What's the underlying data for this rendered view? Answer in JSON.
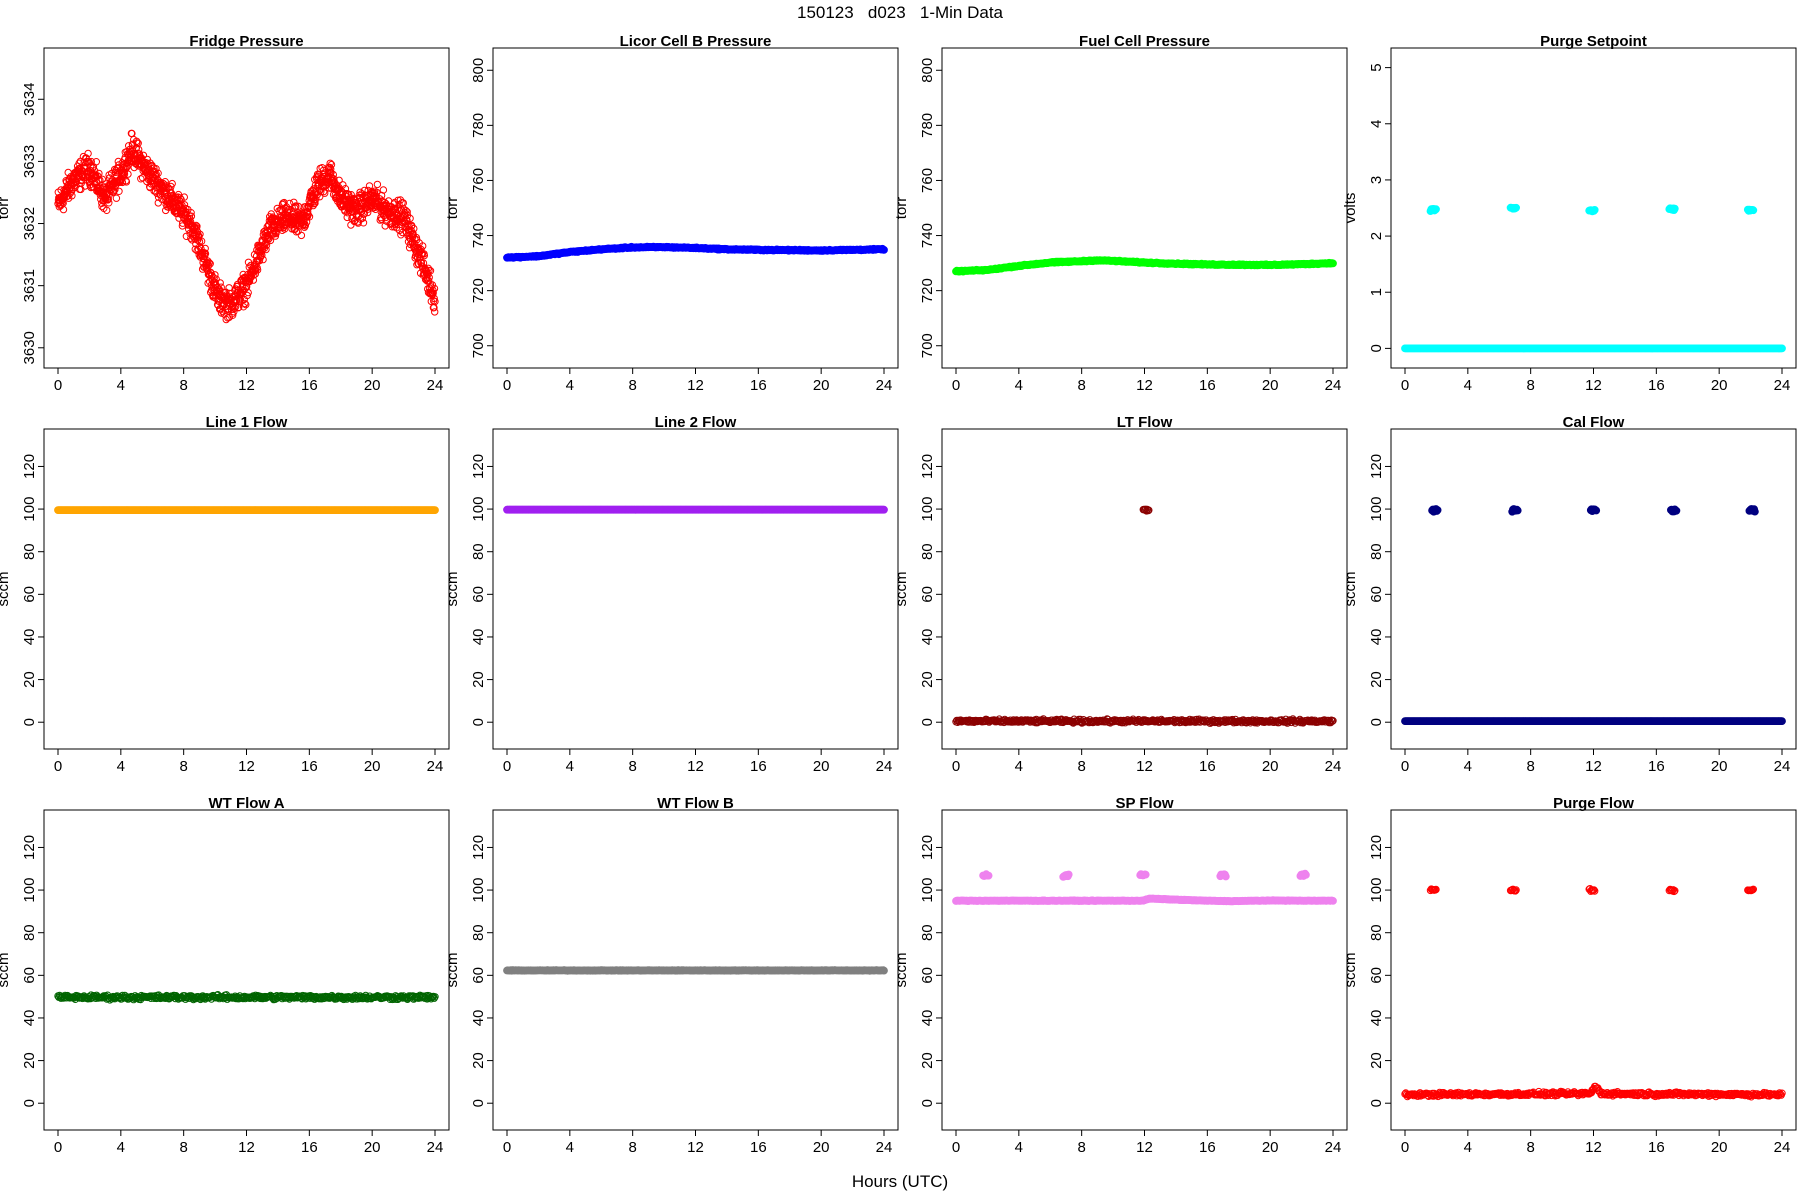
{
  "figure": {
    "suptitle": "150123   d023   1-Min Data",
    "xlabel": "Hours (UTC)"
  },
  "chart_data": [
    {
      "id": "fridge",
      "type": "scatter",
      "title": "Fridge Pressure",
      "ylabel": "torr",
      "color": "#ff0000",
      "marker": "open-circle",
      "xlim": [
        0,
        24
      ],
      "ylim": [
        3629.9,
        3634.6
      ],
      "xticks": [
        0,
        4,
        8,
        12,
        16,
        20,
        24
      ],
      "yticks": [
        3630,
        3631,
        3632,
        3633,
        3634
      ],
      "series": [
        {
          "x": [
            0,
            1,
            2,
            3,
            4,
            4.7,
            5.5,
            6.5,
            7.5,
            8.5,
            9.5,
            10.2,
            11,
            12,
            12.5,
            13.5,
            14.5,
            15.5,
            16.5,
            17.3,
            18,
            19,
            20,
            21,
            22,
            23,
            24
          ],
          "y": [
            3632.3,
            3632.7,
            3632.9,
            3632.4,
            3632.8,
            3633.2,
            3632.9,
            3632.6,
            3632.3,
            3632.0,
            3631.3,
            3630.8,
            3630.7,
            3631.0,
            3631.3,
            3631.9,
            3632.1,
            3632.0,
            3632.6,
            3632.8,
            3632.4,
            3632.2,
            3632.4,
            3632.2,
            3632.1,
            3631.5,
            3630.8
          ],
          "spread": 0.35
        }
      ]
    },
    {
      "id": "licor",
      "type": "scatter",
      "title": "Licor Cell B Pressure",
      "ylabel": "torr",
      "color": "#0000ff",
      "marker": "filled-circle",
      "xlim": [
        0,
        24
      ],
      "ylim": [
        697,
        803
      ],
      "xticks": [
        0,
        4,
        8,
        12,
        16,
        20,
        24
      ],
      "yticks": [
        700,
        720,
        740,
        760,
        780,
        800
      ],
      "series": [
        {
          "x": [
            0,
            2,
            4,
            6,
            8,
            10,
            12,
            14,
            16,
            18,
            20,
            22,
            24
          ],
          "y": [
            732,
            732.5,
            734,
            735,
            735.7,
            735.8,
            735.5,
            735,
            734.8,
            734.7,
            734.6,
            734.8,
            735
          ],
          "spread": 0.3
        }
      ]
    },
    {
      "id": "fuelcell",
      "type": "scatter",
      "title": "Fuel Cell Pressure",
      "ylabel": "torr",
      "color": "#00ff00",
      "marker": "filled-circle",
      "xlim": [
        0,
        24
      ],
      "ylim": [
        697,
        803
      ],
      "xticks": [
        0,
        4,
        8,
        12,
        16,
        20,
        24
      ],
      "yticks": [
        700,
        720,
        740,
        760,
        780,
        800
      ],
      "series": [
        {
          "x": [
            0,
            2,
            4,
            6,
            8,
            9,
            10,
            12,
            14,
            16,
            18,
            20,
            22,
            24
          ],
          "y": [
            727,
            727.5,
            729,
            730.2,
            730.7,
            731,
            730.8,
            730.2,
            729.8,
            729.5,
            729.4,
            729.3,
            729.6,
            730
          ],
          "spread": 0.3
        }
      ]
    },
    {
      "id": "purgesetpoint",
      "type": "scatter",
      "title": "Purge Setpoint",
      "ylabel": "volts",
      "color": "#00ffff",
      "marker": "filled-circle",
      "xlim": [
        0,
        24
      ],
      "ylim": [
        -0.1,
        5.1
      ],
      "xticks": [
        0,
        4,
        8,
        12,
        16,
        20,
        24
      ],
      "yticks": [
        0,
        1,
        2,
        3,
        4,
        5
      ],
      "series": [
        {
          "x": [
            0,
            24
          ],
          "y": [
            0,
            0
          ],
          "spread": 0
        }
      ],
      "clusters": [
        {
          "x": 1.8,
          "y": 2.47
        },
        {
          "x": 6.9,
          "y": 2.5
        },
        {
          "x": 11.9,
          "y": 2.45
        },
        {
          "x": 17.0,
          "y": 2.48
        },
        {
          "x": 22.0,
          "y": 2.46
        }
      ]
    },
    {
      "id": "line1",
      "type": "scatter",
      "title": "Line 1 Flow",
      "ylabel": "sccm",
      "color": "#ffa500",
      "marker": "filled-circle",
      "xlim": [
        0,
        24
      ],
      "ylim": [
        -6,
        131
      ],
      "xticks": [
        0,
        4,
        8,
        12,
        16,
        20,
        24
      ],
      "yticks": [
        0,
        20,
        40,
        60,
        80,
        100,
        120
      ],
      "series": [
        {
          "x": [
            0,
            24
          ],
          "y": [
            99.5,
            99.5
          ],
          "spread": 0
        }
      ]
    },
    {
      "id": "line2",
      "type": "scatter",
      "title": "Line 2 Flow",
      "ylabel": "sccm",
      "color": "#a020f0",
      "marker": "filled-circle",
      "xlim": [
        0,
        24
      ],
      "ylim": [
        -6,
        131
      ],
      "xticks": [
        0,
        4,
        8,
        12,
        16,
        20,
        24
      ],
      "yticks": [
        0,
        20,
        40,
        60,
        80,
        100,
        120
      ],
      "series": [
        {
          "x": [
            0,
            24
          ],
          "y": [
            99.7,
            99.7
          ],
          "spread": 0
        }
      ]
    },
    {
      "id": "ltflow",
      "type": "scatter",
      "title": "LT Flow",
      "ylabel": "sccm",
      "color": "#8b0000",
      "marker": "open-circle",
      "xlim": [
        0,
        24
      ],
      "ylim": [
        -6,
        131
      ],
      "xticks": [
        0,
        4,
        8,
        12,
        16,
        20,
        24
      ],
      "yticks": [
        0,
        20,
        40,
        60,
        80,
        100,
        120
      ],
      "series": [
        {
          "x": [
            0,
            24
          ],
          "y": [
            0.5,
            0.5
          ],
          "spread": 1.2
        }
      ],
      "clusters": [
        {
          "x": 12.1,
          "y": 99.5
        }
      ]
    },
    {
      "id": "calflow",
      "type": "scatter",
      "title": "Cal Flow",
      "ylabel": "sccm",
      "color": "#000080",
      "marker": "filled-circle",
      "xlim": [
        0,
        24
      ],
      "ylim": [
        -6,
        131
      ],
      "xticks": [
        0,
        4,
        8,
        12,
        16,
        20,
        24
      ],
      "yticks": [
        0,
        20,
        40,
        60,
        80,
        100,
        120
      ],
      "series": [
        {
          "x": [
            0,
            24
          ],
          "y": [
            0.5,
            0.5
          ],
          "spread": 0
        }
      ],
      "clusters": [
        {
          "x": 1.9,
          "y": 99.5
        },
        {
          "x": 7.0,
          "y": 99.5
        },
        {
          "x": 12.0,
          "y": 99.5
        },
        {
          "x": 17.1,
          "y": 99.5
        },
        {
          "x": 22.1,
          "y": 99.5
        }
      ]
    },
    {
      "id": "wta",
      "type": "scatter",
      "title": "WT Flow A",
      "ylabel": "sccm",
      "color": "#006400",
      "marker": "open-circle",
      "xlim": [
        0,
        24
      ],
      "ylim": [
        -6,
        131
      ],
      "xticks": [
        0,
        4,
        8,
        12,
        16,
        20,
        24
      ],
      "yticks": [
        0,
        20,
        40,
        60,
        80,
        100,
        120
      ],
      "series": [
        {
          "x": [
            0,
            24
          ],
          "y": [
            49.7,
            49.7
          ],
          "spread": 1.5
        }
      ]
    },
    {
      "id": "wtb",
      "type": "scatter",
      "title": "WT Flow B",
      "ylabel": "sccm",
      "color": "#808080",
      "marker": "filled-circle",
      "xlim": [
        0,
        24
      ],
      "ylim": [
        -6,
        131
      ],
      "xticks": [
        0,
        4,
        8,
        12,
        16,
        20,
        24
      ],
      "yticks": [
        0,
        20,
        40,
        60,
        80,
        100,
        120
      ],
      "series": [
        {
          "x": [
            0,
            24
          ],
          "y": [
            62.3,
            62.3
          ],
          "spread": 0.2
        }
      ]
    },
    {
      "id": "spflow",
      "type": "scatter",
      "title": "SP Flow",
      "ylabel": "sccm",
      "color": "#ee82ee",
      "marker": "filled-circle",
      "xlim": [
        0,
        24
      ],
      "ylim": [
        -6,
        131
      ],
      "xticks": [
        0,
        4,
        8,
        12,
        16,
        20,
        24
      ],
      "yticks": [
        0,
        20,
        40,
        60,
        80,
        100,
        120
      ],
      "series": [
        {
          "x": [
            0,
            11.9,
            12.3,
            14,
            16,
            17.5,
            19,
            20.5,
            22,
            24
          ],
          "y": [
            95,
            95,
            96,
            95.5,
            95,
            94.8,
            95,
            95.1,
            95,
            95
          ],
          "spread": 0.2
        }
      ],
      "clusters": [
        {
          "x": 1.9,
          "y": 107
        },
        {
          "x": 7.0,
          "y": 107
        },
        {
          "x": 11.9,
          "y": 107
        },
        {
          "x": 17.0,
          "y": 107
        },
        {
          "x": 22.1,
          "y": 107
        }
      ]
    },
    {
      "id": "purgeflow",
      "type": "scatter",
      "title": "Purge Flow",
      "ylabel": "sccm",
      "color": "#ff0000",
      "marker": "open-circle",
      "xlim": [
        0,
        24
      ],
      "ylim": [
        -6,
        131
      ],
      "xticks": [
        0,
        4,
        8,
        12,
        16,
        20,
        24
      ],
      "yticks": [
        0,
        20,
        40,
        60,
        80,
        100,
        120
      ],
      "series": [
        {
          "x": [
            0,
            4,
            8,
            11.8,
            12.1,
            12.5,
            16,
            20,
            24
          ],
          "y": [
            4,
            4.2,
            4.3,
            4.5,
            8,
            4.5,
            4.3,
            4.2,
            4
          ],
          "spread": 1.3
        }
      ],
      "clusters": [
        {
          "x": 1.8,
          "y": 100
        },
        {
          "x": 6.9,
          "y": 100
        },
        {
          "x": 11.9,
          "y": 100
        },
        {
          "x": 17.0,
          "y": 100
        },
        {
          "x": 22.0,
          "y": 100
        }
      ]
    }
  ]
}
